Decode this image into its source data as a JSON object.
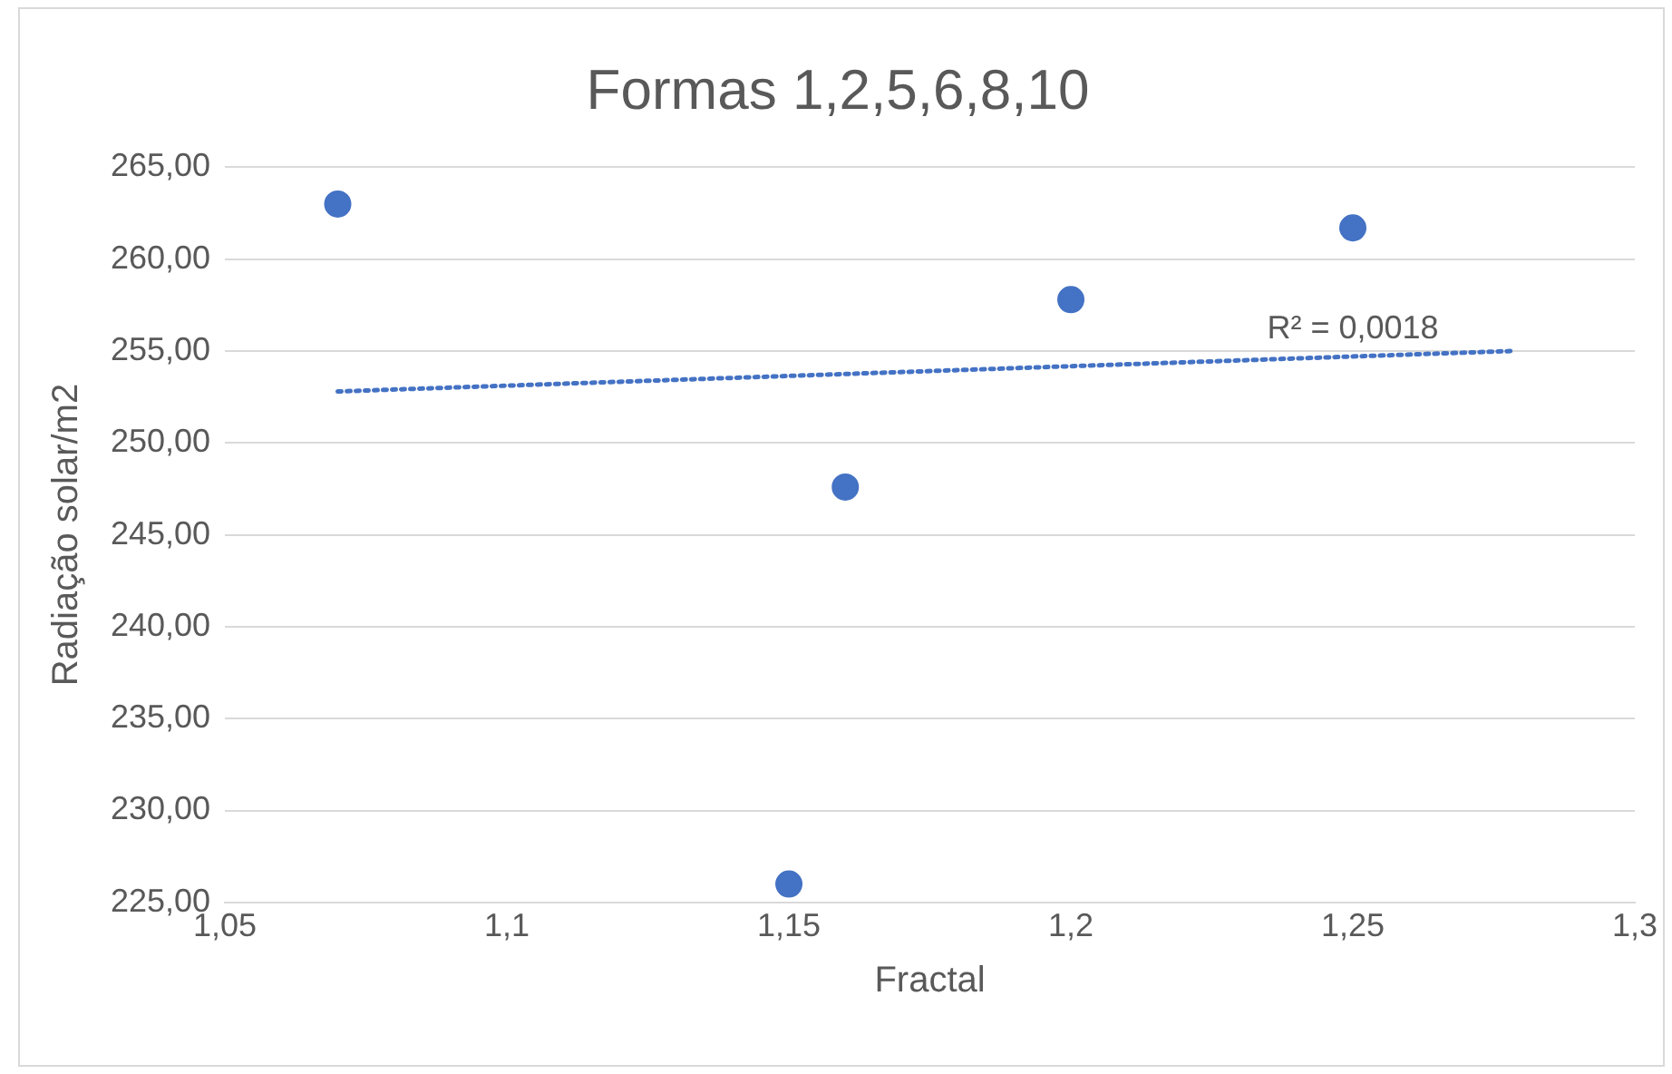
{
  "chart_data": {
    "type": "scatter",
    "title": "Formas 1,2,5,6,8,10",
    "xlabel": "Fractal",
    "ylabel": "Radiação solar/m2",
    "x": [
      1.07,
      1.15,
      1.16,
      1.2,
      1.25
    ],
    "series": [
      {
        "color": "#4472c4",
        "marker": "circle",
        "values": [
          263.0,
          226.0,
          247.6,
          257.8,
          261.7
        ]
      },
      {
        "type": "line",
        "color": "#4472c4",
        "line_style": "dotted",
        "marker": "none",
        "x": [
          1.07,
          1.278
        ],
        "values": [
          252.8,
          255.0
        ]
      }
    ],
    "xlim": [
      1.05,
      1.3
    ],
    "xticks": [
      {
        "value": 1.05,
        "label": "1,05"
      },
      {
        "value": 1.1,
        "label": "1,1"
      },
      {
        "value": 1.15,
        "label": "1,15"
      },
      {
        "value": 1.2,
        "label": "1,2"
      },
      {
        "value": 1.25,
        "label": "1,25"
      },
      {
        "value": 1.3,
        "label": "1,3"
      }
    ],
    "ylim": [
      225,
      265
    ],
    "yticks": [
      {
        "value": 225,
        "label": "225,00"
      },
      {
        "value": 230,
        "label": "230,00"
      },
      {
        "value": 235,
        "label": "235,00"
      },
      {
        "value": 240,
        "label": "240,00"
      },
      {
        "value": 245,
        "label": "245,00"
      },
      {
        "value": 250,
        "label": "250,00"
      },
      {
        "value": 255,
        "label": "255,00"
      },
      {
        "value": 260,
        "label": "260,00"
      },
      {
        "value": 265,
        "label": "265,00"
      }
    ],
    "grid": "y",
    "legend": false,
    "annotations": [
      {
        "text": "R² = 0,0018",
        "x": 1.25,
        "y": 255
      }
    ]
  }
}
